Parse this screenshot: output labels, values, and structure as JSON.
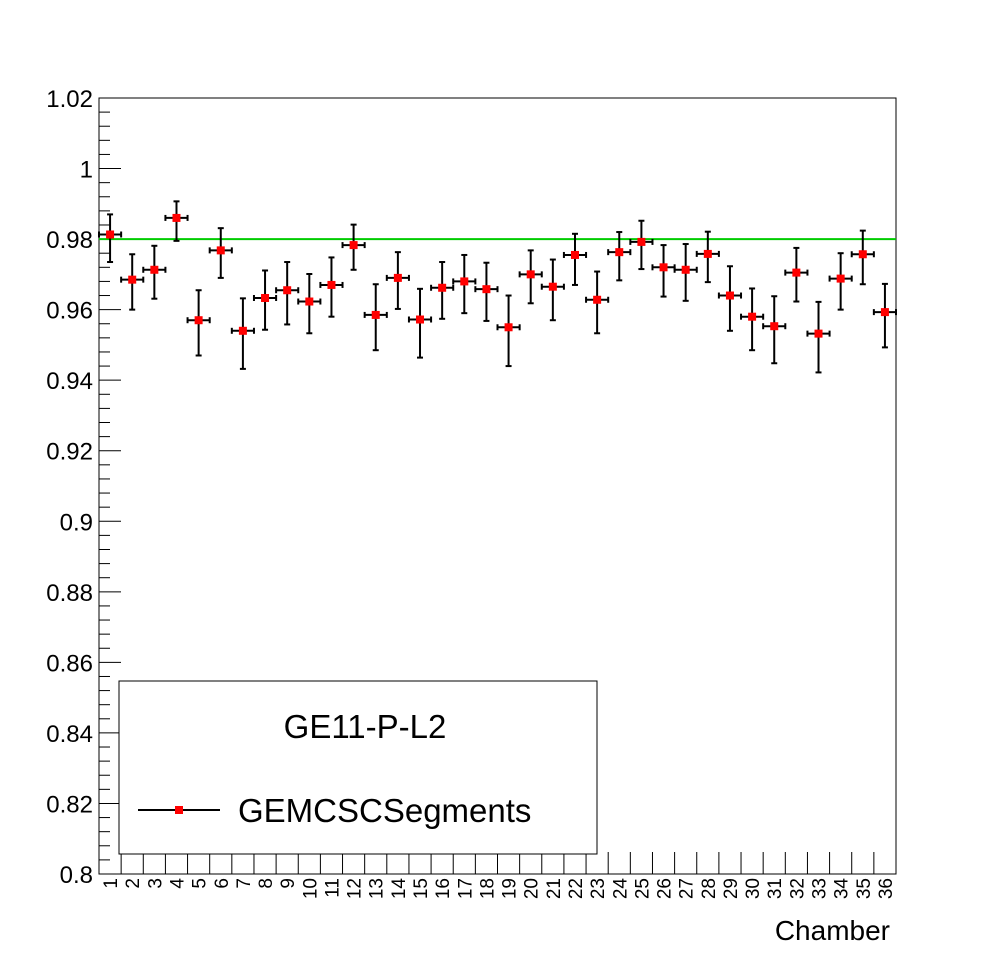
{
  "chart_data": {
    "type": "scatter",
    "xlabel": "Chamber",
    "ylabel": "",
    "ylim": [
      0.8,
      1.02
    ],
    "xlim": [
      0.5,
      36.5
    ],
    "yticks": [
      "0.8",
      "0.82",
      "0.84",
      "0.86",
      "0.88",
      "0.9",
      "0.92",
      "0.94",
      "0.96",
      "0.98",
      "1",
      "1.02"
    ],
    "categories": [
      "1",
      "2",
      "3",
      "4",
      "5",
      "6",
      "7",
      "8",
      "9",
      "10",
      "11",
      "12",
      "13",
      "14",
      "15",
      "16",
      "17",
      "18",
      "19",
      "20",
      "21",
      "22",
      "23",
      "24",
      "25",
      "26",
      "27",
      "28",
      "29",
      "30",
      "31",
      "32",
      "33",
      "34",
      "35",
      "36"
    ],
    "series": [
      {
        "name": "GEMCSCSegments",
        "color": "#ff0000",
        "values": [
          0.9813,
          0.9685,
          0.9713,
          0.986,
          0.957,
          0.9768,
          0.954,
          0.9633,
          0.9655,
          0.9623,
          0.967,
          0.9783,
          0.9585,
          0.969,
          0.9572,
          0.9662,
          0.968,
          0.9658,
          0.955,
          0.97,
          0.9665,
          0.9755,
          0.9628,
          0.9763,
          0.9792,
          0.972,
          0.9713,
          0.9758,
          0.964,
          0.958,
          0.9553,
          0.9705,
          0.9532,
          0.9688,
          0.9757,
          0.9593
        ],
        "err_low": [
          0.0078,
          0.0085,
          0.0082,
          0.0065,
          0.01,
          0.0078,
          0.0108,
          0.009,
          0.0097,
          0.009,
          0.009,
          0.007,
          0.01,
          0.0088,
          0.0108,
          0.0088,
          0.009,
          0.009,
          0.011,
          0.0082,
          0.0095,
          0.0085,
          0.0095,
          0.008,
          0.0077,
          0.0083,
          0.0088,
          0.008,
          0.01,
          0.0095,
          0.0105,
          0.0082,
          0.011,
          0.0088,
          0.0085,
          0.01
        ],
        "err_high": [
          0.0057,
          0.0072,
          0.0068,
          0.0047,
          0.0085,
          0.0063,
          0.0092,
          0.0078,
          0.008,
          0.0078,
          0.0078,
          0.0058,
          0.0087,
          0.0073,
          0.0087,
          0.0073,
          0.0075,
          0.0075,
          0.009,
          0.0068,
          0.0077,
          0.006,
          0.008,
          0.0057,
          0.006,
          0.0063,
          0.0073,
          0.0063,
          0.0083,
          0.008,
          0.0085,
          0.007,
          0.009,
          0.0072,
          0.0067,
          0.008
        ]
      }
    ],
    "reference_line": {
      "y": 0.98,
      "color": "#00cc00"
    },
    "legend": {
      "header": "GE11-P-L2",
      "placement": "bottom-left"
    }
  }
}
